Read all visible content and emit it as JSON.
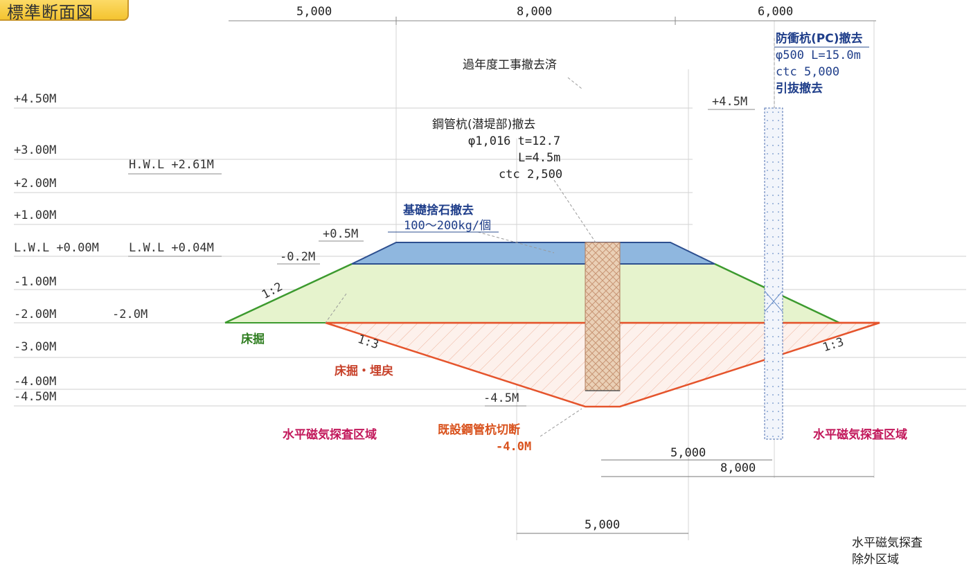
{
  "title": "標準断面図",
  "top_dims": [
    "5,000",
    "8,000",
    "6,000"
  ],
  "levels": [
    "+4.50M",
    "+3.00M",
    "+2.00M",
    "+1.00M",
    "L.W.L +0.00M",
    "-1.00M",
    "-2.00M",
    "-3.00M",
    "-4.00M",
    "-4.50M"
  ],
  "hwl": "H.W.L +2.61M",
  "lwl": "L.W.L +0.04M",
  "elev_labels": {
    "p05": "+0.5M",
    "m02": "-0.2M",
    "m20": "-2.0M",
    "m45": "-4.5M",
    "p45": "+4.5M"
  },
  "notes": {
    "removed_prev": "過年度工事撤去済",
    "steel_pile": [
      "鋼管杭(潜堤部)撤去",
      "φ1,016 t=12.7",
      "L=4.5m",
      "ctc 2,500"
    ],
    "foundation": [
      "基礎捨石撤去",
      "100～200kg/個"
    ],
    "fender_pile": [
      "防衝杭(PC)撤去",
      "φ500 L=15.0m",
      "ctc 5,000",
      "引抜撤去"
    ],
    "cut_pile": [
      "既設鋼管杭切断",
      "-4.0M"
    ],
    "excavation": "床掘",
    "excavation_backfill": "床掘・埋戻",
    "survey_left": "水平磁気探査区域",
    "survey_right": "水平磁気探査区域",
    "survey_excluded": [
      "水平磁気探査",
      "除外区域"
    ]
  },
  "slopes": {
    "green": "1:2",
    "red_left": "1:3",
    "red_right": "1:3"
  },
  "bottom_dims": [
    "5,000",
    "8,000",
    "5,000"
  ],
  "colors": {
    "blue_layer": "#8fb7df",
    "green_layer": "#e3f2c4",
    "green_line": "#3c9a2e",
    "red_line": "#e5542c",
    "pile_fill": "#e9ccb0"
  }
}
